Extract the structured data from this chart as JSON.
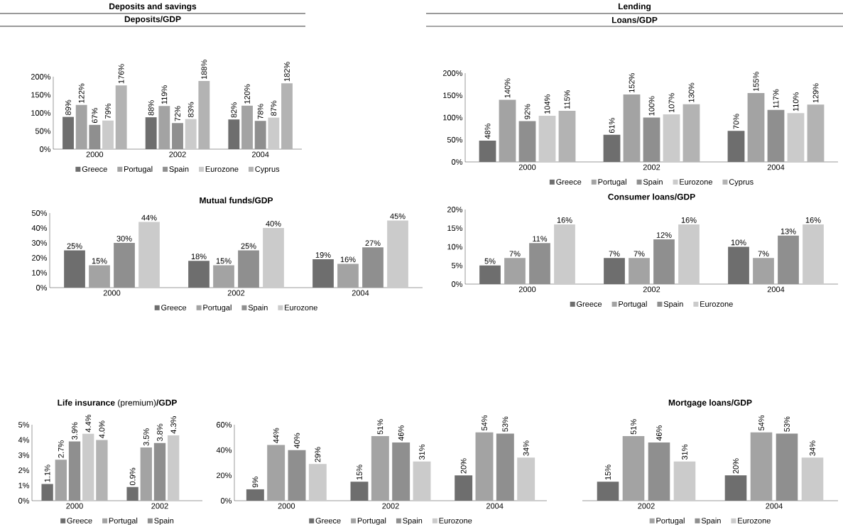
{
  "chart_data": [
    {
      "type": "bar",
      "title": "Deposits and savings",
      "subtitle": "Deposits/GDP",
      "categories": [
        "2000",
        "2002",
        "2004"
      ],
      "ylim": [
        0,
        200
      ],
      "yticks": [
        {
          "value": 0,
          "label": "0%"
        },
        {
          "value": 50,
          "label": "50%"
        },
        {
          "value": 100,
          "label": "100%"
        },
        {
          "value": 150,
          "label": "150%"
        },
        {
          "value": 200,
          "label": "200%"
        }
      ],
      "legend": "bottom",
      "series": [
        {
          "name": "Greece",
          "color": "#6e6e6e",
          "values": [
            89,
            88,
            82
          ],
          "value_labels": [
            "89%",
            "88%",
            "82%"
          ]
        },
        {
          "name": "Portugal",
          "color": "#a3a3a3",
          "values": [
            122,
            119,
            120
          ],
          "value_labels": [
            "122%",
            "119%",
            "120%"
          ]
        },
        {
          "name": "Spain",
          "color": "#8f8f8f",
          "values": [
            67,
            72,
            78
          ],
          "value_labels": [
            "67%",
            "72%",
            "78%"
          ]
        },
        {
          "name": "Eurozone",
          "color": "#cbcbcb",
          "values": [
            79,
            83,
            87
          ],
          "value_labels": [
            "79%",
            "83%",
            "87%"
          ]
        },
        {
          "name": "Cyprus",
          "color": "#b3b3b3",
          "values": [
            176,
            188,
            182
          ],
          "value_labels": [
            "176%",
            "188%",
            "182%"
          ]
        }
      ]
    },
    {
      "type": "bar",
      "title": "Lending",
      "subtitle": "Loans/GDP",
      "categories": [
        "2000",
        "2002",
        "2004"
      ],
      "ylim": [
        0,
        200
      ],
      "yticks": [
        {
          "value": 0,
          "label": "0%"
        },
        {
          "value": 50,
          "label": "50%"
        },
        {
          "value": 100,
          "label": "100%"
        },
        {
          "value": 150,
          "label": "150%"
        },
        {
          "value": 200,
          "label": "200%"
        }
      ],
      "legend": "bottom",
      "series": [
        {
          "name": "Greece",
          "color": "#6e6e6e",
          "values": [
            48,
            61,
            70
          ],
          "value_labels": [
            "48%",
            "61%",
            "70%"
          ]
        },
        {
          "name": "Portugal",
          "color": "#a3a3a3",
          "values": [
            140,
            152,
            155
          ],
          "value_labels": [
            "140%",
            "152%",
            "155%"
          ]
        },
        {
          "name": "Spain",
          "color": "#8f8f8f",
          "values": [
            92,
            100,
            117
          ],
          "value_labels": [
            "92%",
            "100%",
            "117%"
          ]
        },
        {
          "name": "Eurozone",
          "color": "#cbcbcb",
          "values": [
            104,
            107,
            110
          ],
          "value_labels": [
            "104%",
            "107%",
            "110%"
          ]
        },
        {
          "name": "Cyprus",
          "color": "#b3b3b3",
          "values": [
            115,
            130,
            129
          ],
          "value_labels": [
            "115%",
            "130%",
            "129%"
          ]
        }
      ]
    },
    {
      "type": "bar",
      "title": "Mutual funds/GDP",
      "categories": [
        "2000",
        "2002",
        "2004"
      ],
      "ylim": [
        0,
        50
      ],
      "yticks": [
        {
          "value": 0,
          "label": "0%"
        },
        {
          "value": 10,
          "label": "10%"
        },
        {
          "value": 20,
          "label": "20%"
        },
        {
          "value": 30,
          "label": "30%"
        },
        {
          "value": 40,
          "label": "40%"
        },
        {
          "value": 50,
          "label": "50%"
        }
      ],
      "legend": "bottom",
      "series": [
        {
          "name": "Greece",
          "color": "#6e6e6e",
          "values": [
            25,
            18,
            19
          ],
          "value_labels": [
            "25%",
            "18%",
            "19%"
          ]
        },
        {
          "name": "Portugal",
          "color": "#a3a3a3",
          "values": [
            15,
            15,
            16
          ],
          "value_labels": [
            "15%",
            "15%",
            "16%"
          ]
        },
        {
          "name": "Spain",
          "color": "#8f8f8f",
          "values": [
            30,
            25,
            27
          ],
          "value_labels": [
            "30%",
            "25%",
            "27%"
          ]
        },
        {
          "name": "Eurozone",
          "color": "#cbcbcb",
          "values": [
            44,
            40,
            45
          ],
          "value_labels": [
            "44%",
            "40%",
            "45%"
          ]
        }
      ]
    },
    {
      "type": "bar",
      "title": "Consumer loans/GDP",
      "categories": [
        "2000",
        "2002",
        "2004"
      ],
      "ylim": [
        0,
        20
      ],
      "yticks": [
        {
          "value": 0,
          "label": "0%"
        },
        {
          "value": 5,
          "label": "5%"
        },
        {
          "value": 10,
          "label": "10%"
        },
        {
          "value": 15,
          "label": "15%"
        },
        {
          "value": 20,
          "label": "20%"
        }
      ],
      "legend": "bottom",
      "series": [
        {
          "name": "Greece",
          "color": "#6e6e6e",
          "values": [
            5,
            7,
            10
          ],
          "value_labels": [
            "5%",
            "7%",
            "10%"
          ]
        },
        {
          "name": "Portugal",
          "color": "#a3a3a3",
          "values": [
            7,
            7,
            7
          ],
          "value_labels": [
            "7%",
            "7%",
            "7%"
          ]
        },
        {
          "name": "Spain",
          "color": "#8f8f8f",
          "values": [
            11,
            12,
            13
          ],
          "value_labels": [
            "11%",
            "12%",
            "13%"
          ]
        },
        {
          "name": "Eurozone",
          "color": "#cbcbcb",
          "values": [
            16,
            16,
            16
          ],
          "value_labels": [
            "16%",
            "16%",
            "16%"
          ]
        }
      ]
    },
    {
      "type": "bar",
      "title": "**Life insurance** (premium)**/GDP**",
      "categories": [
        "2000",
        "2002"
      ],
      "ylim": [
        0,
        5
      ],
      "yticks": [
        {
          "value": 0,
          "label": "0%"
        },
        {
          "value": 1,
          "label": "1%"
        },
        {
          "value": 2,
          "label": "2%"
        },
        {
          "value": 3,
          "label": "3%"
        },
        {
          "value": 4,
          "label": "4%"
        },
        {
          "value": 5,
          "label": "5%"
        }
      ],
      "legend": "bottom",
      "series": [
        {
          "name": "Greece",
          "color": "#6e6e6e",
          "values": [
            1.1,
            0.9
          ],
          "value_labels": [
            "1.1%",
            "0.9%"
          ]
        },
        {
          "name": "Portugal",
          "color": "#a3a3a3",
          "values": [
            2.7,
            3.5
          ],
          "value_labels": [
            "2.7%",
            "3.5%"
          ]
        },
        {
          "name": "Spain",
          "color": "#8f8f8f",
          "values": [
            3.9,
            3.8
          ],
          "value_labels": [
            "3.9%",
            "3.8%"
          ]
        },
        {
          "color": "#cbcbcb",
          "values": [
            4.4,
            4.3
          ],
          "value_labels": [
            "4.4%",
            "4.3%"
          ]
        },
        {
          "color": "#b3b3b3",
          "values": [
            4.0,
            null
          ],
          "value_labels": [
            "4.0%",
            null
          ]
        }
      ]
    },
    {
      "type": "bar",
      "categories": [
        "2000",
        "2002",
        "2004"
      ],
      "ylim": [
        0,
        60
      ],
      "yticks": [
        {
          "value": 0,
          "label": "0%"
        },
        {
          "value": 20,
          "label": "20%"
        },
        {
          "value": 40,
          "label": "40%"
        },
        {
          "value": 60,
          "label": "60%"
        }
      ],
      "legend": "bottom",
      "series": [
        {
          "name": "Greece",
          "color": "#6e6e6e",
          "values": [
            9,
            15,
            20
          ],
          "value_labels": [
            "9%",
            "15%",
            "20%"
          ]
        },
        {
          "name": "Portugal",
          "color": "#a3a3a3",
          "values": [
            44,
            51,
            54
          ],
          "value_labels": [
            "44%",
            "51%",
            "54%"
          ]
        },
        {
          "name": "Spain",
          "color": "#8f8f8f",
          "values": [
            40,
            46,
            53
          ],
          "value_labels": [
            "40%",
            "46%",
            "53%"
          ]
        },
        {
          "name": "Eurozone",
          "color": "#cbcbcb",
          "values": [
            29,
            31,
            34
          ],
          "value_labels": [
            "29%",
            "31%",
            "34%"
          ]
        }
      ]
    },
    {
      "type": "bar",
      "title": "Mortgage loans/GDP",
      "categories": [
        "2002",
        "2004"
      ],
      "ylim": [
        0,
        60
      ],
      "tick_labels": "x",
      "legend": "bottom",
      "series": [
        {
          "color": "#6e6e6e",
          "values": [
            15,
            20
          ],
          "value_labels": [
            "15%",
            "20%"
          ]
        },
        {
          "name": "Portugal",
          "color": "#a3a3a3",
          "values": [
            51,
            54
          ],
          "value_labels": [
            "51%",
            "54%"
          ]
        },
        {
          "name": "Spain",
          "color": "#8f8f8f",
          "values": [
            46,
            53
          ],
          "value_labels": [
            "46%",
            "53%"
          ]
        },
        {
          "name": "Eurozone",
          "color": "#cbcbcb",
          "values": [
            31,
            34
          ],
          "value_labels": [
            "31%",
            "34%"
          ]
        }
      ]
    }
  ]
}
